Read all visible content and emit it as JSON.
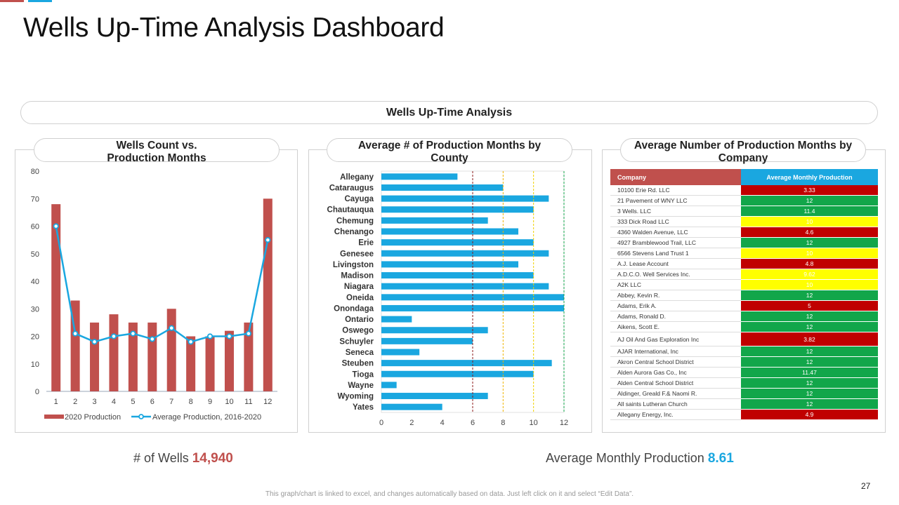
{
  "colors": {
    "red": "#c0504d",
    "blue": "#1aa7e0",
    "green": "#12a64a",
    "yellow": "#ffff00",
    "dark_red": "#c00000"
  },
  "page": {
    "title": "Wells Up-Time Analysis Dashboard",
    "banner": "Wells Up-Time Analysis",
    "page_number": "27",
    "footer": "This graph/chart is linked to excel, and changes automatically based on data. Just left click on it and select “Edit Data”."
  },
  "kpis": {
    "wells_label": "# of Wells",
    "wells_value": "14,940",
    "avg_label": "Average Monthly Production",
    "avg_value": "8.61"
  },
  "chart_data": [
    {
      "type": "bar",
      "title": "Wells Count vs. Production Months",
      "categories": [
        "1",
        "2",
        "3",
        "4",
        "5",
        "6",
        "7",
        "8",
        "9",
        "10",
        "11",
        "12"
      ],
      "series": [
        {
          "name": "2020 Production",
          "type": "bar",
          "values": [
            68,
            33,
            25,
            28,
            25,
            25,
            30,
            20,
            20,
            22,
            25,
            70
          ]
        },
        {
          "name": "Average Production, 2016-2020",
          "type": "line",
          "values": [
            60,
            21,
            18,
            20,
            21,
            19,
            23,
            18,
            20,
            20,
            21,
            55
          ]
        }
      ],
      "ylim": [
        0,
        80
      ],
      "yticks": [
        0,
        10,
        20,
        30,
        40,
        50,
        60,
        70,
        80
      ],
      "legend": "bottom"
    },
    {
      "type": "bar",
      "orientation": "horizontal",
      "title": "Average # of Production Months by County",
      "categories": [
        "Allegany",
        "Cataraugus",
        "Cayuga",
        "Chautauqua",
        "Chemung",
        "Chenango",
        "Erie",
        "Genesee",
        "Livingston",
        "Madison",
        "Niagara",
        "Oneida",
        "Onondaga",
        "Ontario",
        "Oswego",
        "Schuyler",
        "Seneca",
        "Steuben",
        "Tioga",
        "Wayne",
        "Wyoming",
        "Yates"
      ],
      "values": [
        5,
        8,
        11,
        10,
        7,
        9,
        10,
        11,
        9,
        10,
        11,
        12,
        12,
        2,
        7,
        6,
        2.5,
        11.2,
        10,
        1,
        7,
        4
      ],
      "xlim": [
        0,
        12
      ],
      "xticks": [
        0,
        2,
        4,
        6,
        8,
        10,
        12
      ],
      "reference_lines": [
        6,
        8,
        10,
        12
      ]
    },
    {
      "type": "table",
      "title": "Average Number of Production Months by Company",
      "columns": [
        "Company",
        "Average Monthly Production"
      ],
      "rows": [
        {
          "company": "10100 Erie Rd. LLC",
          "value": "3.33",
          "status": "red"
        },
        {
          "company": "21 Pavement of WNY LLC",
          "value": "12",
          "status": "green"
        },
        {
          "company": "3 Wells. LLC",
          "value": "11.4",
          "status": "green"
        },
        {
          "company": "333 Dick Road LLC",
          "value": "10",
          "status": "yellow"
        },
        {
          "company": "4360 Walden Avenue, LLC",
          "value": "4.6",
          "status": "red"
        },
        {
          "company": "4927 Bramblewood Trail, LLC",
          "value": "12",
          "status": "green"
        },
        {
          "company": "6566 Stevens Land Trust 1",
          "value": "10",
          "status": "yellow"
        },
        {
          "company": "A.J. Lease Account",
          "value": "4.8",
          "status": "red"
        },
        {
          "company": "A.D.C.O. Well Services Inc.",
          "value": "9.62",
          "status": "yellow"
        },
        {
          "company": "A2K LLC",
          "value": "10",
          "status": "yellow"
        },
        {
          "company": "Abbey, Kevin R.",
          "value": "12",
          "status": "green"
        },
        {
          "company": "Adams, Erik A.",
          "value": "5",
          "status": "red"
        },
        {
          "company": "Adams, Ronald D.",
          "value": "12",
          "status": "green"
        },
        {
          "company": "Aikens, Scott E.",
          "value": "12",
          "status": "green"
        },
        {
          "company": "AJ Oil And Gas Exploration Inc",
          "value": "3.82",
          "status": "red"
        },
        {
          "company": "AJAR International, Inc",
          "value": "12",
          "status": "green"
        },
        {
          "company": "Akron Central School District",
          "value": "12",
          "status": "green"
        },
        {
          "company": "Alden Aurora Gas Co., Inc",
          "value": "11.47",
          "status": "green"
        },
        {
          "company": "Alden Central School District",
          "value": "12",
          "status": "green"
        },
        {
          "company": "Aldinger, Greald F.& Naomi R.",
          "value": "12",
          "status": "green"
        },
        {
          "company": "All saints Lutheran Church",
          "value": "12",
          "status": "green"
        },
        {
          "company": "Allegany Energy, Inc.",
          "value": "4.9",
          "status": "red"
        }
      ]
    }
  ]
}
